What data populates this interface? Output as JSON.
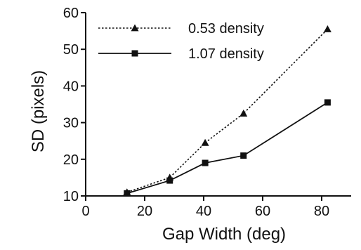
{
  "chart_data": {
    "type": "line",
    "title": "",
    "xlabel": "Gap Width (deg)",
    "ylabel": "SD (pixels)",
    "xlim": [
      0,
      90
    ],
    "ylim": [
      10,
      60
    ],
    "xticks": [
      0,
      20,
      40,
      60,
      80
    ],
    "yticks": [
      10,
      20,
      30,
      40,
      50,
      60
    ],
    "xtick_labels": [
      "0",
      "20",
      "40",
      "60",
      "80"
    ],
    "ytick_labels": [
      "10",
      "20",
      "30",
      "40",
      "50",
      "60"
    ],
    "grid": false,
    "legend_position": "top-left",
    "series": [
      {
        "name": "0.53 density",
        "line_style": "dotted",
        "marker": "triangle",
        "color": "#111111",
        "x": [
          14,
          28.5,
          40.5,
          53.5,
          82
        ],
        "y": [
          11,
          15,
          24.5,
          32.5,
          55.5
        ]
      },
      {
        "name": "1.07 density",
        "line_style": "solid",
        "marker": "square",
        "color": "#111111",
        "x": [
          14,
          28.5,
          40.5,
          53.5,
          82
        ],
        "y": [
          10.7,
          14.2,
          19,
          21,
          35.5
        ]
      }
    ]
  }
}
